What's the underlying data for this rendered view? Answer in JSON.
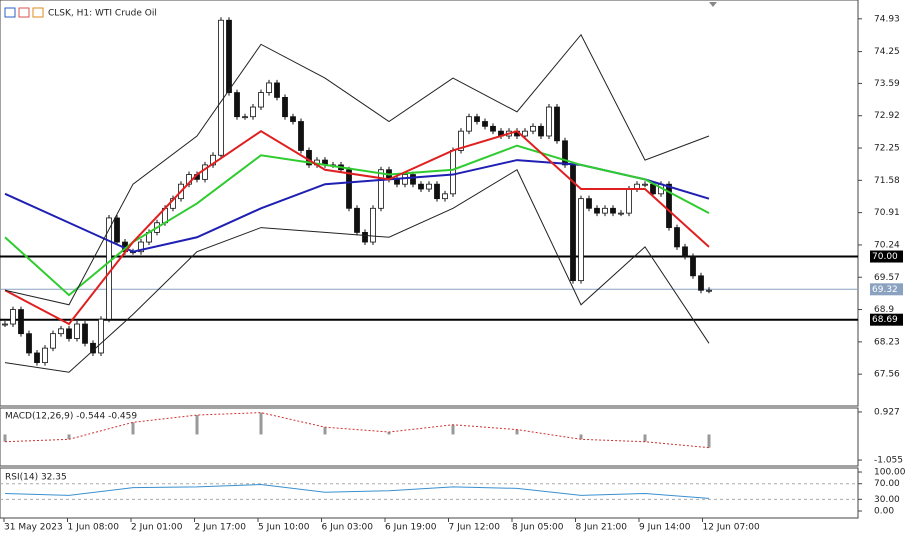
{
  "chart_data": {
    "type": "candlestick",
    "title": "CLSK, H1: WTI Crude Oil",
    "close": [
      68.6,
      68.9,
      68.4,
      68.0,
      67.8,
      68.1,
      68.4,
      68.5,
      68.3,
      68.6,
      68.2,
      68.0,
      68.7,
      70.8,
      70.3,
      70.1,
      70.1,
      70.3,
      70.5,
      70.7,
      71.0,
      71.2,
      71.5,
      71.7,
      71.6,
      71.9,
      72.1,
      74.9,
      73.4,
      72.9,
      72.9,
      73.1,
      73.4,
      73.6,
      73.3,
      72.9,
      72.8,
      72.2,
      71.9,
      72.0,
      71.9,
      71.9,
      71.8,
      71.0,
      70.5,
      70.3,
      71.0,
      71.8,
      71.6,
      71.5,
      71.7,
      71.5,
      71.4,
      71.5,
      71.2,
      71.3,
      72.2,
      72.6,
      72.9,
      72.8,
      72.7,
      72.6,
      72.5,
      72.6,
      72.5,
      72.6,
      72.7,
      72.5,
      73.1,
      72.4,
      71.9,
      69.5,
      71.2,
      71.0,
      70.9,
      71.0,
      70.9,
      70.9,
      71.4,
      71.5,
      71.5,
      71.3,
      71.5,
      70.6,
      70.2,
      70.0,
      69.6,
      69.3,
      69.3
    ],
    "line_x": [
      0,
      8,
      16,
      24,
      32,
      40,
      48,
      56,
      64,
      72,
      80,
      88
    ],
    "series": [
      {
        "color": "#1f1fb4",
        "values": [
          71.3,
          70.7,
          70.1,
          70.4,
          71.0,
          71.5,
          71.6,
          71.7,
          72.0,
          71.9,
          71.6,
          71.2
        ]
      },
      {
        "color": "#2ecc2e",
        "values": [
          70.4,
          69.2,
          70.3,
          71.1,
          72.1,
          71.9,
          71.7,
          71.8,
          72.3,
          71.9,
          71.6,
          70.9
        ]
      },
      {
        "color": "#e02020",
        "values": [
          69.3,
          68.6,
          70.3,
          71.7,
          72.6,
          71.8,
          71.6,
          72.2,
          72.6,
          71.4,
          71.4,
          70.2
        ]
      },
      {
        "color": "#222222",
        "values": [
          69.3,
          69.0,
          71.5,
          72.5,
          74.4,
          73.7,
          72.8,
          73.7,
          73.0,
          74.6,
          72.0,
          72.5
        ]
      },
      {
        "color": "#222222",
        "values": [
          67.8,
          67.6,
          68.8,
          70.1,
          70.6,
          70.5,
          70.4,
          71.0,
          71.8,
          69.0,
          70.2,
          68.2
        ]
      }
    ],
    "ylim": [
      66.9,
      75.32
    ],
    "yticks": [
      74.93,
      74.25,
      73.59,
      72.92,
      72.25,
      71.58,
      70.91,
      70.24,
      69.57,
      68.9,
      68.23,
      67.56
    ],
    "hlines": [
      {
        "value": 70,
        "label": "70.00"
      },
      {
        "value": 68.69,
        "label": "68.69"
      }
    ],
    "price_line": {
      "value": 69.32,
      "label": "69.32"
    },
    "macd_label": "MACD(12,26,9) -0.544 -0.459",
    "macd": [
      -0.3,
      -0.2,
      0.5,
      0.8,
      0.9,
      0.3,
      0.1,
      0.4,
      0.2,
      -0.2,
      -0.3,
      -0.544
    ],
    "macd_ylim": [
      -1.3,
      1.09
    ],
    "macd_yticks": [
      0.927,
      -1.055
    ],
    "rsi_label": "RSI(14) 32.35",
    "rsi": [
      45,
      40,
      60,
      62,
      68,
      48,
      52,
      62,
      58,
      40,
      45,
      32.35
    ],
    "rsi_ylim": [
      -17.9,
      110.3
    ],
    "rsi_yticks": [
      {
        "value": 100,
        "label": "100.00"
      },
      {
        "value": 70,
        "label": "70.00"
      },
      {
        "value": 30,
        "label": "30.00"
      },
      {
        "value": 0,
        "label": "0.00"
      }
    ],
    "xtick_labels": [
      "31 May 2023",
      "1 Jun 08:00",
      "2 Jun 01:00",
      "2 Jun 17:00",
      "5 Jun 10:00",
      "6 Jun 03:00",
      "6 Jun 19:00",
      "7 Jun 12:00",
      "8 Jun 05:00",
      "8 Jun 21:00",
      "9 Jun 14:00",
      "12 Jun 07:00"
    ]
  }
}
